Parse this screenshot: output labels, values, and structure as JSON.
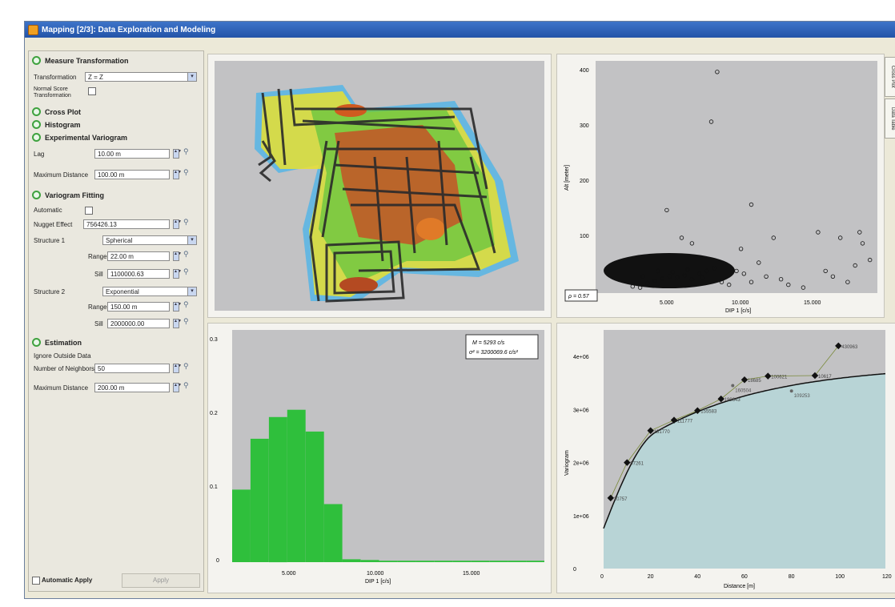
{
  "window": {
    "title": "Mapping [2/3]: Data Exploration and Modeling"
  },
  "sections": {
    "measure_transformation": "Measure Transformation",
    "cross_plot": "Cross Plot",
    "histogram": "Histogram",
    "experimental_variogram": "Experimental Variogram",
    "variogram_fitting": "Variogram Fitting",
    "estimation": "Estimation"
  },
  "transformation": {
    "label": "Transformation",
    "value": "Z = Z",
    "normal_score_label_1": "Normal Score",
    "normal_score_label_2": "Transformation"
  },
  "experimental_variogram": {
    "lag_label": "Lag",
    "lag_value": "10.00 m",
    "max_distance_label": "Maximum Distance",
    "max_distance_value": "100.00 m"
  },
  "variogram_fitting": {
    "automatic_label": "Automatic",
    "nugget_label": "Nugget Effect",
    "nugget_value": "756426.13",
    "structure1_label": "Structure 1",
    "structure1_model": "Spherical",
    "range_label": "Range",
    "range1_value": "22.00 m",
    "sill_label": "Sill",
    "sill1_value": "1100000.63",
    "structure2_label": "Structure 2",
    "structure2_model": "Exponential",
    "range2_value": "150.00 m",
    "sill2_value": "2000000.00"
  },
  "estimation": {
    "ignore_outside_label": "Ignore Outside Data",
    "neighbors_label": "Number of Neighbors",
    "neighbors_value": "50",
    "max_distance_label": "Maximum Distance",
    "max_distance_value": "200.00 m"
  },
  "footer": {
    "automatic_apply_label": "Automatic Apply",
    "apply_button": "Apply"
  },
  "side_tabs": [
    "Cross Plot",
    "Data Table"
  ],
  "cross_plot": {
    "ylabel": "Alt [meter]",
    "xlabel": "DIP 1 [c/s]",
    "y_ticks": [
      "400",
      "300",
      "200",
      "100"
    ],
    "x_ticks": [
      "5.000",
      "10.000",
      "15.000"
    ],
    "r_label": "ρ = 0.57"
  },
  "histogram": {
    "xlabel": "DIP 1 [c/s]",
    "y_ticks": [
      "0.3",
      "0.2",
      "0.1",
      "0"
    ],
    "x_ticks": [
      "5.000",
      "10.000",
      "15.000"
    ],
    "stats_mean": "M = 5293 c/s",
    "stats_var": "σ² = 3200069.6 c/s²",
    "bar_color": "#2fbf3c"
  },
  "chart_data": [
    {
      "type": "heatmap",
      "note": ""
    },
    {
      "type": "scatter",
      "xlabel": "DIP 1 [c/s]",
      "ylabel": "Alt [meter]",
      "xlim": [
        0,
        19000
      ],
      "ylim": [
        0,
        420
      ],
      "points": [
        [
          3000,
          10
        ],
        [
          3500,
          18
        ],
        [
          4000,
          22
        ],
        [
          4500,
          26
        ],
        [
          5000,
          30
        ],
        [
          5500,
          28
        ],
        [
          6000,
          32
        ],
        [
          6500,
          25
        ],
        [
          7000,
          35
        ],
        [
          7500,
          40
        ],
        [
          8000,
          45
        ],
        [
          3200,
          30
        ],
        [
          4200,
          40
        ],
        [
          5200,
          38
        ],
        [
          6200,
          42
        ],
        [
          7200,
          28
        ],
        [
          2500,
          12
        ],
        [
          8500,
          20
        ],
        [
          9000,
          15
        ],
        [
          9500,
          40
        ],
        [
          10000,
          35
        ],
        [
          10500,
          20
        ],
        [
          11500,
          30
        ],
        [
          12500,
          25
        ],
        [
          13000,
          15
        ],
        [
          14000,
          10
        ],
        [
          15500,
          40
        ],
        [
          16000,
          30
        ],
        [
          17000,
          20
        ],
        [
          17500,
          50
        ],
        [
          18000,
          90
        ],
        [
          18500,
          60
        ],
        [
          16500,
          100
        ],
        [
          12000,
          100
        ],
        [
          9800,
          80
        ],
        [
          6500,
          90
        ],
        [
          5800,
          100
        ],
        [
          17800,
          110
        ],
        [
          15000,
          110
        ],
        [
          7800,
          310
        ],
        [
          8200,
          400
        ],
        [
          4800,
          150
        ],
        [
          10500,
          160
        ],
        [
          11000,
          55
        ]
      ],
      "rho": 0.57
    },
    {
      "type": "bar",
      "xlabel": "DIP 1 [c/s]",
      "x": [
        2500,
        3500,
        4500,
        5500,
        6500,
        7500,
        8500,
        9500,
        10500,
        11500,
        12500,
        13500,
        14500,
        15500,
        16500,
        17500,
        18500
      ],
      "values": [
        0.1,
        0.17,
        0.2,
        0.21,
        0.18,
        0.08,
        0.004,
        0.003,
        0.002,
        0.002,
        0.002,
        0.002,
        0.002,
        0.002,
        0.002,
        0.002,
        0.002
      ],
      "ylim": [
        0,
        0.32
      ]
    },
    {
      "type": "scatter",
      "xlabel": "Distance [m]",
      "ylabel": "Variogram",
      "x_ticks": [
        "0",
        "20",
        "40",
        "60",
        "80",
        "100",
        "120"
      ],
      "y_ticks": [
        "0",
        "1e+06",
        "2e+06",
        "3e+06",
        "4e+06"
      ],
      "xlim": [
        0,
        120
      ],
      "ylim": [
        0,
        4500000
      ],
      "experimental": [
        [
          3,
          1330000
        ],
        [
          10,
          2000000
        ],
        [
          20,
          2600000
        ],
        [
          30,
          2800000
        ],
        [
          40,
          2980000
        ],
        [
          50,
          3200000
        ],
        [
          60,
          3560000
        ],
        [
          70,
          3630000
        ],
        [
          90,
          3640000
        ],
        [
          100,
          4200000
        ]
      ],
      "pair_counts": [
        "20757",
        "97261",
        "131770",
        "111777",
        "155583",
        "199843",
        "18685",
        "100621",
        "10617",
        "430963"
      ],
      "secondary_points": [
        [
          55,
          3450000
        ],
        [
          80,
          3350000
        ]
      ],
      "secondary_labels": [
        "160504",
        "109253"
      ]
    }
  ]
}
